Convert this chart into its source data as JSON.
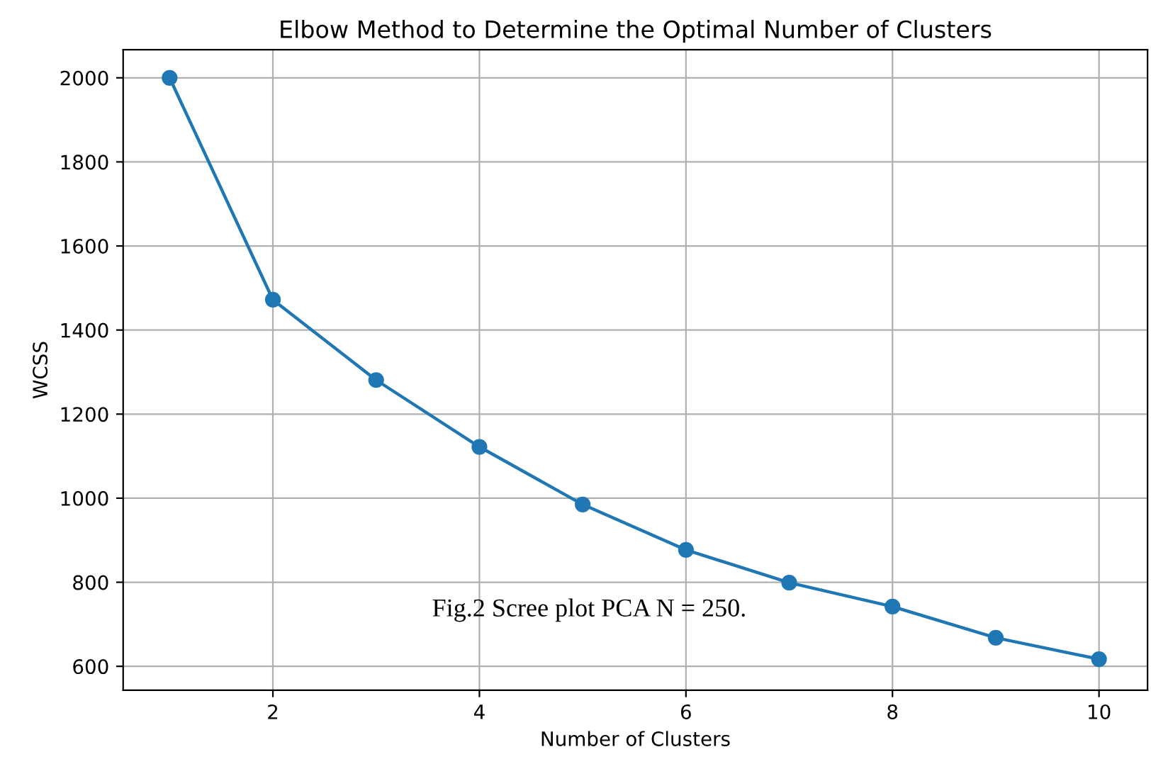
{
  "chart_data": {
    "type": "line",
    "title": "Elbow Method to Determine the Optimal Number of Clusters",
    "xlabel": "Number of Clusters",
    "ylabel": "WCSS",
    "x": [
      1,
      2,
      3,
      4,
      5,
      6,
      7,
      8,
      9,
      10
    ],
    "series": [
      {
        "color": "#1f77b4",
        "values": [
          2000,
          1472,
          1281,
          1122,
          985,
          877,
          799,
          742,
          668,
          617
        ]
      }
    ],
    "xlim": [
      0.55,
      10.47
    ],
    "ylim": [
      543,
      2067
    ],
    "xticks": [
      2,
      4,
      6,
      8,
      10
    ],
    "yticks": [
      600,
      800,
      1000,
      1200,
      1400,
      1600,
      1800,
      2000
    ],
    "grid": true,
    "marker": "circle",
    "line_style": "solid",
    "legend": false,
    "annotations": [
      "Fig.2 Scree plot PCA N = 250."
    ]
  }
}
